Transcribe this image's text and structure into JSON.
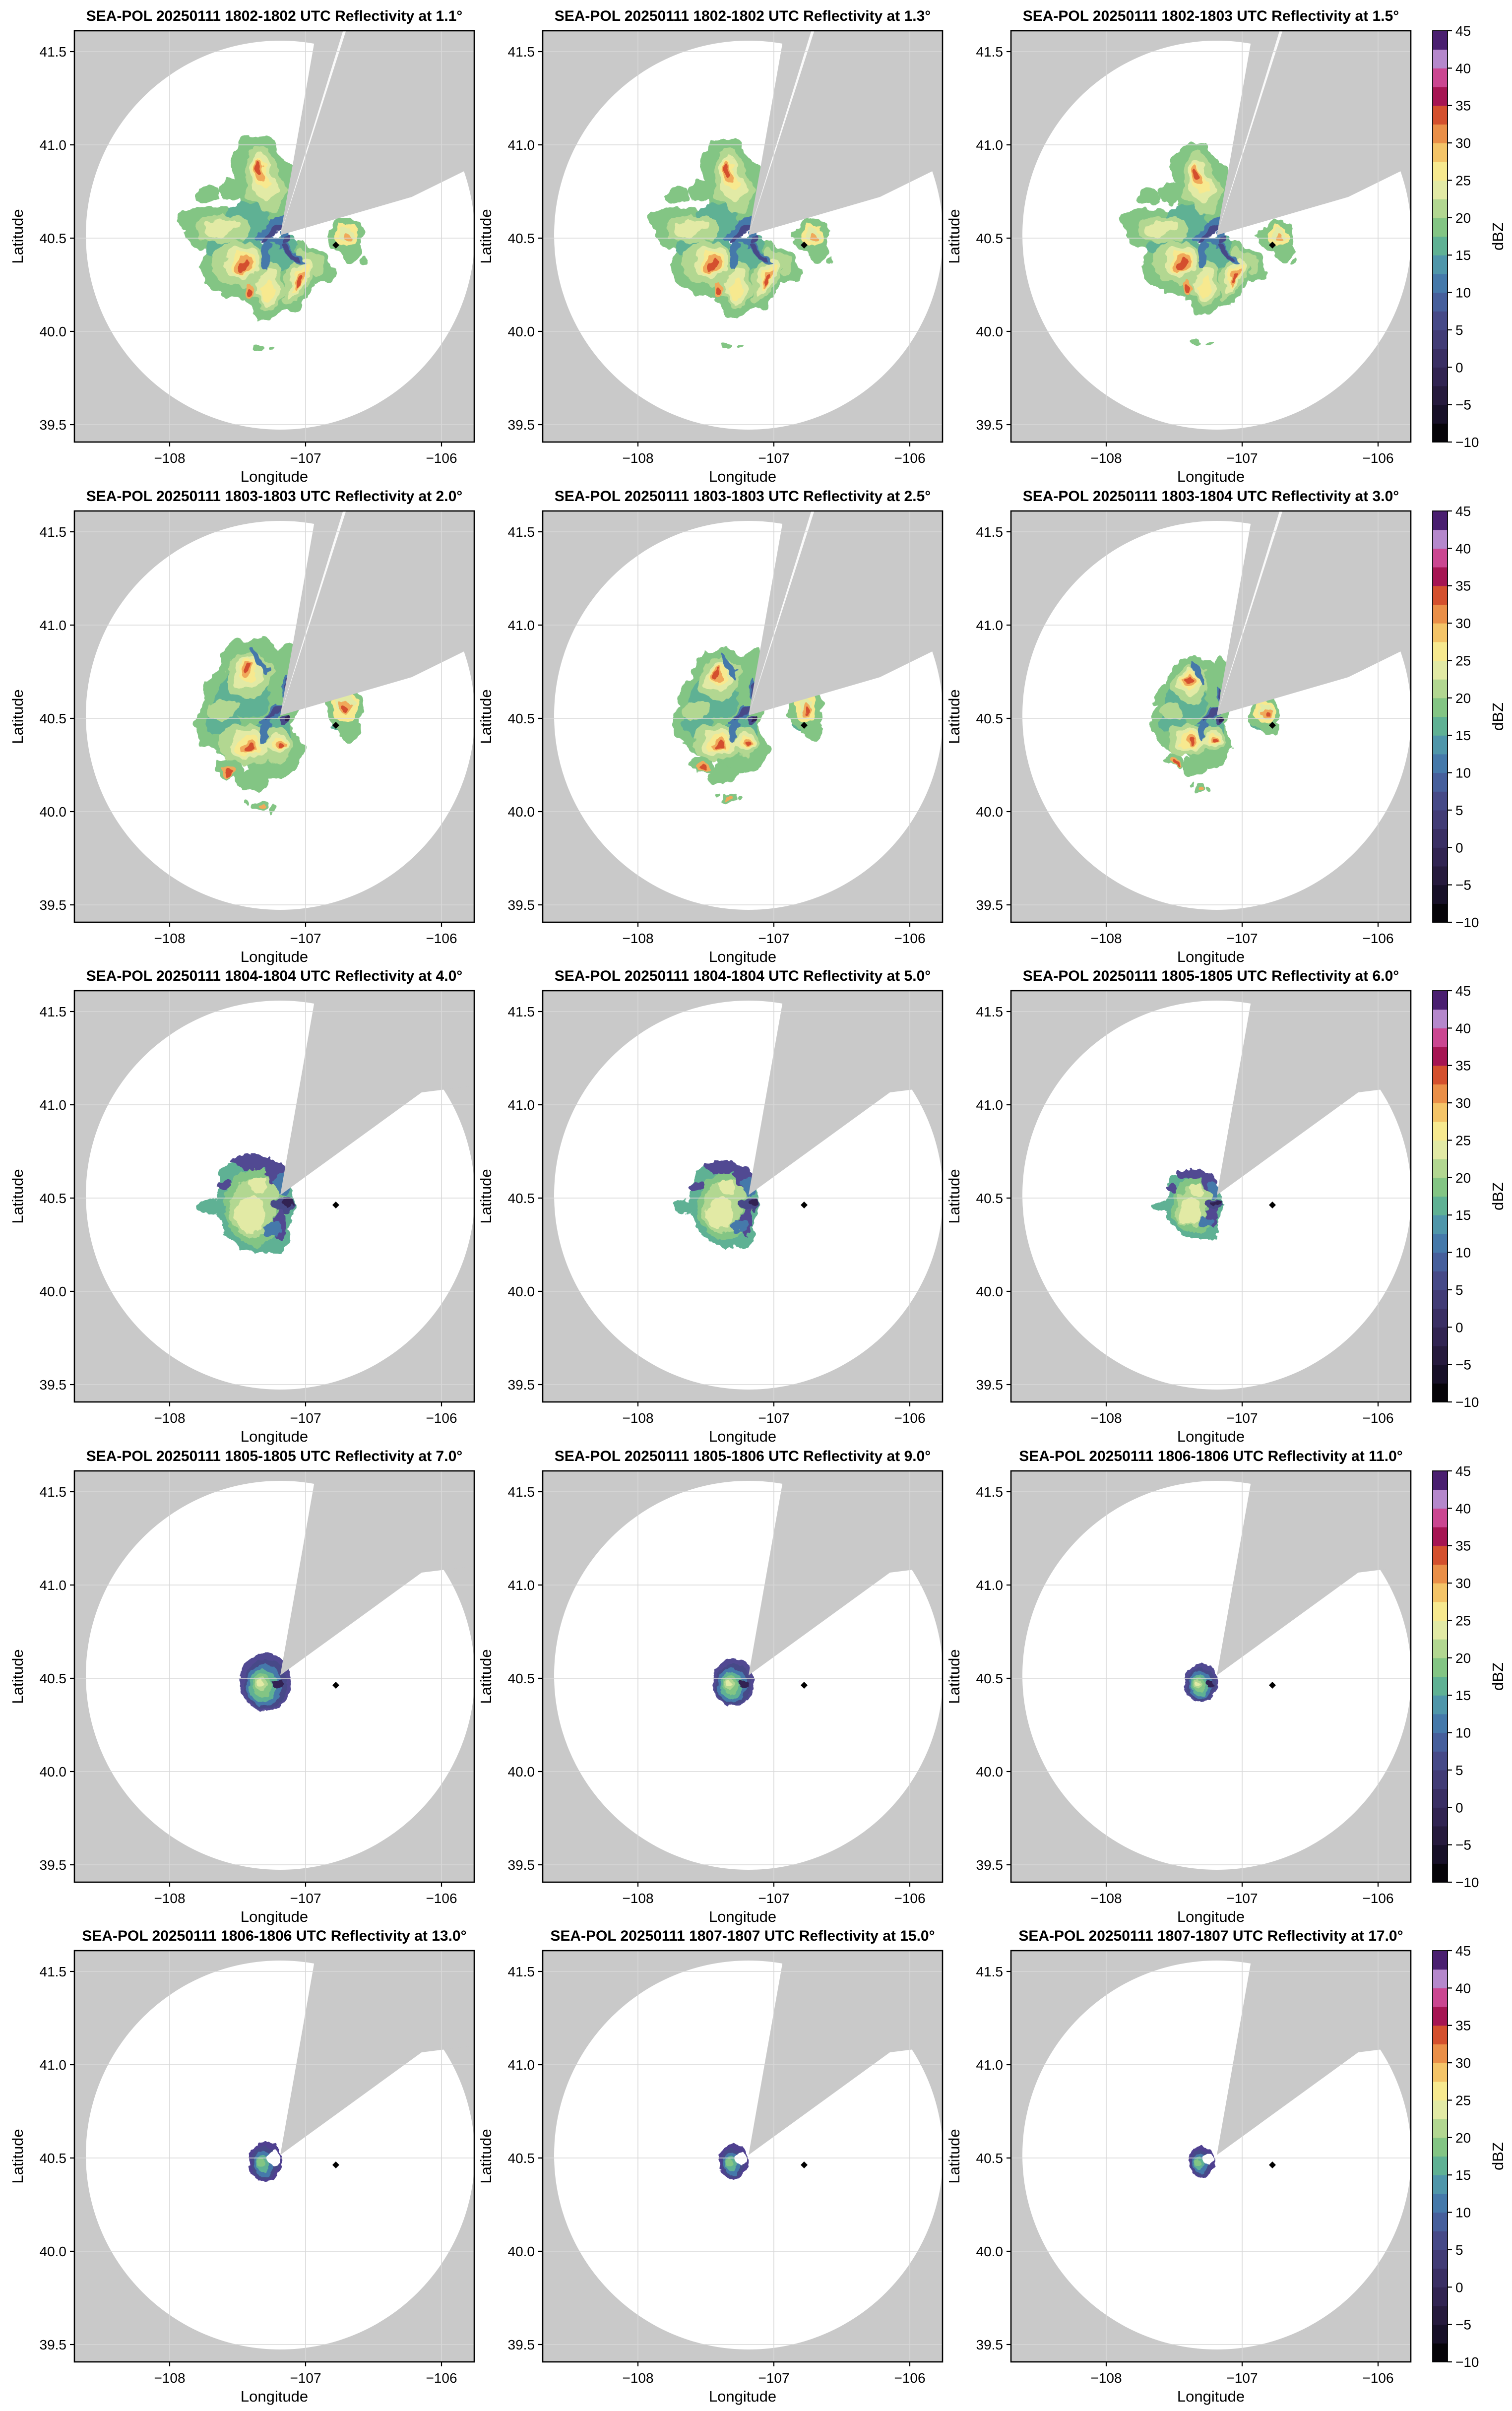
{
  "figure": {
    "radar_name": "SEA-POL",
    "date": "20250111",
    "product": "Reflectivity",
    "units": "dBZ",
    "panels": [
      {
        "title": "SEA-POL 20250111 1802-1802 UTC Reflectivity at 1.1°",
        "time_utc": "1802-1802",
        "elevation_deg": 1.1
      },
      {
        "title": "SEA-POL 20250111 1802-1802 UTC Reflectivity at 1.3°",
        "time_utc": "1802-1802",
        "elevation_deg": 1.3
      },
      {
        "title": "SEA-POL 20250111 1802-1803 UTC Reflectivity at 1.5°",
        "time_utc": "1802-1803",
        "elevation_deg": 1.5
      },
      {
        "title": "SEA-POL 20250111 1803-1803 UTC Reflectivity at 2.0°",
        "time_utc": "1803-1803",
        "elevation_deg": 2.0
      },
      {
        "title": "SEA-POL 20250111 1803-1803 UTC Reflectivity at 2.5°",
        "time_utc": "1803-1803",
        "elevation_deg": 2.5
      },
      {
        "title": "SEA-POL 20250111 1803-1804 UTC Reflectivity at 3.0°",
        "time_utc": "1803-1804",
        "elevation_deg": 3.0
      },
      {
        "title": "SEA-POL 20250111 1804-1804 UTC Reflectivity at 4.0°",
        "time_utc": "1804-1804",
        "elevation_deg": 4.0
      },
      {
        "title": "SEA-POL 20250111 1804-1804 UTC Reflectivity at 5.0°",
        "time_utc": "1804-1804",
        "elevation_deg": 5.0
      },
      {
        "title": "SEA-POL 20250111 1805-1805 UTC Reflectivity at 6.0°",
        "time_utc": "1805-1805",
        "elevation_deg": 6.0
      },
      {
        "title": "SEA-POL 20250111 1805-1805 UTC Reflectivity at 7.0°",
        "time_utc": "1805-1805",
        "elevation_deg": 7.0
      },
      {
        "title": "SEA-POL 20250111 1805-1806 UTC Reflectivity at 9.0°",
        "time_utc": "1805-1806",
        "elevation_deg": 9.0
      },
      {
        "title": "SEA-POL 20250111 1806-1806 UTC Reflectivity at 11.0°",
        "time_utc": "1806-1806",
        "elevation_deg": 11.0
      },
      {
        "title": "SEA-POL 20250111 1806-1806 UTC Reflectivity at 13.0°",
        "time_utc": "1806-1806",
        "elevation_deg": 13.0
      },
      {
        "title": "SEA-POL 20250111 1807-1807 UTC Reflectivity at 15.0°",
        "time_utc": "1807-1807",
        "elevation_deg": 15.0
      },
      {
        "title": "SEA-POL 20250111 1807-1807 UTC Reflectivity at 17.0°",
        "time_utc": "1807-1807",
        "elevation_deg": 17.0
      }
    ]
  },
  "axes": {
    "xlabel": "Longitude",
    "ylabel": "Latitude",
    "xtick_labels": [
      "−108",
      "−107",
      "−106"
    ],
    "xtick_values": [
      -108,
      -107,
      -106
    ],
    "ytick_labels": [
      "41.5",
      "41.0",
      "40.5",
      "40.0",
      "39.5"
    ],
    "ytick_values": [
      41.5,
      41.0,
      40.5,
      40.0,
      39.5
    ]
  },
  "colorbar": {
    "label": "dBZ",
    "vmin": -10,
    "vmax": 45,
    "tick_step": 5,
    "tick_labels": [
      "45",
      "40",
      "35",
      "30",
      "25",
      "20",
      "15",
      "10",
      "5",
      "0",
      "−5",
      "−10"
    ],
    "tick_values": [
      45,
      40,
      35,
      30,
      25,
      20,
      15,
      10,
      5,
      0,
      -5,
      -10
    ],
    "colors_bottom_to_top": [
      "#060409",
      "#171028",
      "#261a3d",
      "#312452",
      "#3a2f64",
      "#423c76",
      "#464a88",
      "#465f9c",
      "#4579aa",
      "#4f96aa",
      "#5fb194",
      "#83c584",
      "#b2d791",
      "#e2eaa5",
      "#f7e98f",
      "#f4c468",
      "#ea8f48",
      "#d4502e",
      "#a61553",
      "#cb4691",
      "#b588cc",
      "#4a1f70"
    ]
  },
  "map": {
    "background_color": "#c9c9c9",
    "coverage_color": "#ffffff",
    "grid_color": "#d8d8d8",
    "marker_color": "#000000",
    "radar_location": {
      "lon": -107.2,
      "lat": 40.49
    },
    "site_marker": {
      "lon": -106.78,
      "lat": 40.46
    },
    "x_range": [
      -108.7,
      -105.76
    ],
    "y_range": [
      39.41,
      41.61
    ]
  },
  "chart_data": [
    {
      "type": "heatmap",
      "subtype": "radar_ppi",
      "title": "SEA-POL 20250111 1802-1802 UTC Reflectivity at 1.1°",
      "time_utc": "1802-1802",
      "elevation_deg": 1.1,
      "field": "Reflectivity",
      "units": "dBZ",
      "x_range": [
        -108.7,
        -105.76
      ],
      "y_range": [
        39.41,
        41.61
      ],
      "xticks": [
        -108,
        -107,
        -106
      ],
      "yticks": [
        41.5,
        41.0,
        40.5,
        40.0,
        39.5
      ],
      "colorbar": {
        "min": -10,
        "max": 45,
        "step": 5,
        "label": "dBZ"
      },
      "radar_location": {
        "lon": -107.2,
        "lat": 40.49
      },
      "site_marker": {
        "lon": -106.78,
        "lat": 40.46
      },
      "blocked_sector_azimuth_deg": [
        12,
        55
      ],
      "echo_extent_deg": 1.5,
      "approx_max_dbz": 32
    },
    {
      "type": "heatmap",
      "subtype": "radar_ppi",
      "title": "SEA-POL 20250111 1802-1802 UTC Reflectivity at 1.3°",
      "time_utc": "1802-1802",
      "elevation_deg": 1.3,
      "field": "Reflectivity",
      "units": "dBZ",
      "x_range": [
        -108.7,
        -105.76
      ],
      "y_range": [
        39.41,
        41.61
      ],
      "xticks": [
        -108,
        -107,
        -106
      ],
      "yticks": [
        41.5,
        41.0,
        40.5,
        40.0,
        39.5
      ],
      "colorbar": {
        "min": -10,
        "max": 45,
        "step": 5,
        "label": "dBZ"
      },
      "radar_location": {
        "lon": -107.2,
        "lat": 40.49
      },
      "site_marker": {
        "lon": -106.78,
        "lat": 40.46
      },
      "blocked_sector_azimuth_deg": [
        12,
        55
      ],
      "echo_extent_deg": 1.4,
      "approx_max_dbz": 32
    },
    {
      "type": "heatmap",
      "subtype": "radar_ppi",
      "title": "SEA-POL 20250111 1802-1803 UTC Reflectivity at 1.5°",
      "time_utc": "1802-1803",
      "elevation_deg": 1.5,
      "field": "Reflectivity",
      "units": "dBZ",
      "x_range": [
        -108.7,
        -105.76
      ],
      "y_range": [
        39.41,
        41.61
      ],
      "xticks": [
        -108,
        -107,
        -106
      ],
      "yticks": [
        41.5,
        41.0,
        40.5,
        40.0,
        39.5
      ],
      "colorbar": {
        "min": -10,
        "max": 45,
        "step": 5,
        "label": "dBZ"
      },
      "radar_location": {
        "lon": -107.2,
        "lat": 40.49
      },
      "site_marker": {
        "lon": -106.78,
        "lat": 40.46
      },
      "blocked_sector_azimuth_deg": [
        12,
        55
      ],
      "echo_extent_deg": 1.3,
      "approx_max_dbz": 32
    },
    {
      "type": "heatmap",
      "subtype": "radar_ppi",
      "title": "SEA-POL 20250111 1803-1803 UTC Reflectivity at 2.0°",
      "time_utc": "1803-1803",
      "elevation_deg": 2.0,
      "field": "Reflectivity",
      "units": "dBZ",
      "x_range": [
        -108.7,
        -105.76
      ],
      "y_range": [
        39.41,
        41.61
      ],
      "xticks": [
        -108,
        -107,
        -106
      ],
      "yticks": [
        41.5,
        41.0,
        40.5,
        40.0,
        39.5
      ],
      "colorbar": {
        "min": -10,
        "max": 45,
        "step": 5,
        "label": "dBZ"
      },
      "radar_location": {
        "lon": -107.2,
        "lat": 40.49
      },
      "site_marker": {
        "lon": -106.78,
        "lat": 40.46
      },
      "blocked_sector_azimuth_deg": [
        12,
        55
      ],
      "echo_extent_deg": 1.1,
      "approx_max_dbz": 32
    },
    {
      "type": "heatmap",
      "subtype": "radar_ppi",
      "title": "SEA-POL 20250111 1803-1803 UTC Reflectivity at 2.5°",
      "time_utc": "1803-1803",
      "elevation_deg": 2.5,
      "field": "Reflectivity",
      "units": "dBZ",
      "x_range": [
        -108.7,
        -105.76
      ],
      "y_range": [
        39.41,
        41.61
      ],
      "xticks": [
        -108,
        -107,
        -106
      ],
      "yticks": [
        41.5,
        41.0,
        40.5,
        40.0,
        39.5
      ],
      "colorbar": {
        "min": -10,
        "max": 45,
        "step": 5,
        "label": "dBZ"
      },
      "radar_location": {
        "lon": -107.2,
        "lat": 40.49
      },
      "site_marker": {
        "lon": -106.78,
        "lat": 40.46
      },
      "blocked_sector_azimuth_deg": [
        12,
        55
      ],
      "echo_extent_deg": 1.0,
      "approx_max_dbz": 30
    },
    {
      "type": "heatmap",
      "subtype": "radar_ppi",
      "title": "SEA-POL 20250111 1803-1804 UTC Reflectivity at 3.0°",
      "time_utc": "1803-1804",
      "elevation_deg": 3.0,
      "field": "Reflectivity",
      "units": "dBZ",
      "x_range": [
        -108.7,
        -105.76
      ],
      "y_range": [
        39.41,
        41.61
      ],
      "xticks": [
        -108,
        -107,
        -106
      ],
      "yticks": [
        41.5,
        41.0,
        40.5,
        40.0,
        39.5
      ],
      "colorbar": {
        "min": -10,
        "max": 45,
        "step": 5,
        "label": "dBZ"
      },
      "radar_location": {
        "lon": -107.2,
        "lat": 40.49
      },
      "site_marker": {
        "lon": -106.78,
        "lat": 40.46
      },
      "blocked_sector_azimuth_deg": [
        12,
        55
      ],
      "echo_extent_deg": 0.85,
      "approx_max_dbz": 27
    },
    {
      "type": "heatmap",
      "subtype": "radar_ppi",
      "title": "SEA-POL 20250111 1804-1804 UTC Reflectivity at 4.0°",
      "time_utc": "1804-1804",
      "elevation_deg": 4.0,
      "field": "Reflectivity",
      "units": "dBZ",
      "x_range": [
        -108.7,
        -105.76
      ],
      "y_range": [
        39.41,
        41.61
      ],
      "xticks": [
        -108,
        -107,
        -106
      ],
      "yticks": [
        41.5,
        41.0,
        40.5,
        40.0,
        39.5
      ],
      "colorbar": {
        "min": -10,
        "max": 45,
        "step": 5,
        "label": "dBZ"
      },
      "radar_location": {
        "lon": -107.2,
        "lat": 40.49
      },
      "site_marker": {
        "lon": -106.78,
        "lat": 40.46
      },
      "blocked_sector_azimuth_deg": [
        12,
        55
      ],
      "echo_extent_deg": 0.55,
      "approx_max_dbz": 25
    },
    {
      "type": "heatmap",
      "subtype": "radar_ppi",
      "title": "SEA-POL 20250111 1804-1804 UTC Reflectivity at 5.0°",
      "time_utc": "1804-1804",
      "elevation_deg": 5.0,
      "field": "Reflectivity",
      "units": "dBZ",
      "x_range": [
        -108.7,
        -105.76
      ],
      "y_range": [
        39.41,
        41.61
      ],
      "xticks": [
        -108,
        -107,
        -106
      ],
      "yticks": [
        41.5,
        41.0,
        40.5,
        40.0,
        39.5
      ],
      "colorbar": {
        "min": -10,
        "max": 45,
        "step": 5,
        "label": "dBZ"
      },
      "radar_location": {
        "lon": -107.2,
        "lat": 40.49
      },
      "site_marker": {
        "lon": -106.78,
        "lat": 40.46
      },
      "blocked_sector_azimuth_deg": [
        12,
        55
      ],
      "echo_extent_deg": 0.5,
      "approx_max_dbz": 24
    },
    {
      "type": "heatmap",
      "subtype": "radar_ppi",
      "title": "SEA-POL 20250111 1805-1805 UTC Reflectivity at 6.0°",
      "time_utc": "1805-1805",
      "elevation_deg": 6.0,
      "field": "Reflectivity",
      "units": "dBZ",
      "x_range": [
        -108.7,
        -105.76
      ],
      "y_range": [
        39.41,
        41.61
      ],
      "xticks": [
        -108,
        -107,
        -106
      ],
      "yticks": [
        41.5,
        41.0,
        40.5,
        40.0,
        39.5
      ],
      "colorbar": {
        "min": -10,
        "max": 45,
        "step": 5,
        "label": "dBZ"
      },
      "radar_location": {
        "lon": -107.2,
        "lat": 40.49
      },
      "site_marker": {
        "lon": -106.78,
        "lat": 40.46
      },
      "blocked_sector_azimuth_deg": [
        12,
        55
      ],
      "echo_extent_deg": 0.4,
      "approx_max_dbz": 20
    },
    {
      "type": "heatmap",
      "subtype": "radar_ppi",
      "title": "SEA-POL 20250111 1805-1805 UTC Reflectivity at 7.0°",
      "time_utc": "1805-1805",
      "elevation_deg": 7.0,
      "field": "Reflectivity",
      "units": "dBZ",
      "x_range": [
        -108.7,
        -105.76
      ],
      "y_range": [
        39.41,
        41.61
      ],
      "xticks": [
        -108,
        -107,
        -106
      ],
      "yticks": [
        41.5,
        41.0,
        40.5,
        40.0,
        39.5
      ],
      "colorbar": {
        "min": -10,
        "max": 45,
        "step": 5,
        "label": "dBZ"
      },
      "radar_location": {
        "lon": -107.2,
        "lat": 40.49
      },
      "site_marker": {
        "lon": -106.78,
        "lat": 40.46
      },
      "blocked_sector_azimuth_deg": [
        12,
        55
      ],
      "echo_extent_deg": 0.33,
      "approx_max_dbz": 20
    },
    {
      "type": "heatmap",
      "subtype": "radar_ppi",
      "title": "SEA-POL 20250111 1805-1806 UTC Reflectivity at 9.0°",
      "time_utc": "1805-1806",
      "elevation_deg": 9.0,
      "field": "Reflectivity",
      "units": "dBZ",
      "x_range": [
        -108.7,
        -105.76
      ],
      "y_range": [
        39.41,
        41.61
      ],
      "xticks": [
        -108,
        -107,
        -106
      ],
      "yticks": [
        41.5,
        41.0,
        40.5,
        40.0,
        39.5
      ],
      "colorbar": {
        "min": -10,
        "max": 45,
        "step": 5,
        "label": "dBZ"
      },
      "radar_location": {
        "lon": -107.2,
        "lat": 40.49
      },
      "site_marker": {
        "lon": -106.78,
        "lat": 40.46
      },
      "blocked_sector_azimuth_deg": [
        12,
        55
      ],
      "echo_extent_deg": 0.28,
      "approx_max_dbz": 18
    },
    {
      "type": "heatmap",
      "subtype": "radar_ppi",
      "title": "SEA-POL 20250111 1806-1806 UTC Reflectivity at 11.0°",
      "time_utc": "1806-1806",
      "elevation_deg": 11.0,
      "field": "Reflectivity",
      "units": "dBZ",
      "x_range": [
        -108.7,
        -105.76
      ],
      "y_range": [
        39.41,
        41.61
      ],
      "xticks": [
        -108,
        -107,
        -106
      ],
      "yticks": [
        41.5,
        41.0,
        40.5,
        40.0,
        39.5
      ],
      "colorbar": {
        "min": -10,
        "max": 45,
        "step": 5,
        "label": "dBZ"
      },
      "radar_location": {
        "lon": -107.2,
        "lat": 40.49
      },
      "site_marker": {
        "lon": -106.78,
        "lat": 40.46
      },
      "blocked_sector_azimuth_deg": [
        12,
        55
      ],
      "echo_extent_deg": 0.22,
      "approx_max_dbz": 15
    },
    {
      "type": "heatmap",
      "subtype": "radar_ppi",
      "title": "SEA-POL 20250111 1806-1806 UTC Reflectivity at 13.0°",
      "time_utc": "1806-1806",
      "elevation_deg": 13.0,
      "field": "Reflectivity",
      "units": "dBZ",
      "x_range": [
        -108.7,
        -105.76
      ],
      "y_range": [
        39.41,
        41.61
      ],
      "xticks": [
        -108,
        -107,
        -106
      ],
      "yticks": [
        41.5,
        41.0,
        40.5,
        40.0,
        39.5
      ],
      "colorbar": {
        "min": -10,
        "max": 45,
        "step": 5,
        "label": "dBZ"
      },
      "radar_location": {
        "lon": -107.2,
        "lat": 40.49
      },
      "site_marker": {
        "lon": -106.78,
        "lat": 40.46
      },
      "blocked_sector_azimuth_deg": [
        12,
        55
      ],
      "echo_extent_deg": 0.18,
      "approx_max_dbz": 15
    },
    {
      "type": "heatmap",
      "subtype": "radar_ppi",
      "title": "SEA-POL 20250111 1807-1807 UTC Reflectivity at 15.0°",
      "time_utc": "1807-1807",
      "elevation_deg": 15.0,
      "field": "Reflectivity",
      "units": "dBZ",
      "x_range": [
        -108.7,
        -105.76
      ],
      "y_range": [
        39.41,
        41.61
      ],
      "xticks": [
        -108,
        -107,
        -106
      ],
      "yticks": [
        41.5,
        41.0,
        40.5,
        40.0,
        39.5
      ],
      "colorbar": {
        "min": -10,
        "max": 45,
        "step": 5,
        "label": "dBZ"
      },
      "radar_location": {
        "lon": -107.2,
        "lat": 40.49
      },
      "site_marker": {
        "lon": -106.78,
        "lat": 40.46
      },
      "blocked_sector_azimuth_deg": [
        12,
        55
      ],
      "echo_extent_deg": 0.16,
      "approx_max_dbz": 13
    },
    {
      "type": "heatmap",
      "subtype": "radar_ppi",
      "title": "SEA-POL 20250111 1807-1807 UTC Reflectivity at 17.0°",
      "time_utc": "1807-1807",
      "elevation_deg": 17.0,
      "field": "Reflectivity",
      "units": "dBZ",
      "x_range": [
        -108.7,
        -105.76
      ],
      "y_range": [
        39.41,
        41.61
      ],
      "xticks": [
        -108,
        -107,
        -106
      ],
      "yticks": [
        41.5,
        41.0,
        40.5,
        40.0,
        39.5
      ],
      "colorbar": {
        "min": -10,
        "max": 45,
        "step": 5,
        "label": "dBZ"
      },
      "radar_location": {
        "lon": -107.2,
        "lat": 40.49
      },
      "site_marker": {
        "lon": -106.78,
        "lat": 40.46
      },
      "blocked_sector_azimuth_deg": [
        12,
        55
      ],
      "echo_extent_deg": 0.14,
      "approx_max_dbz": 12
    }
  ]
}
